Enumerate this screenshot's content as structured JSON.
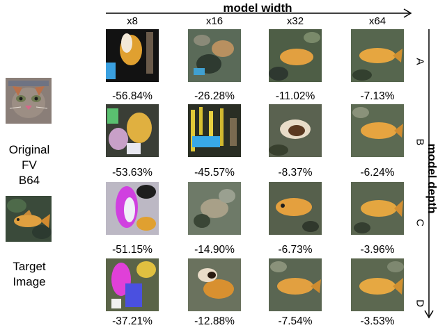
{
  "figure": {
    "x_axis_title": "model width",
    "y_axis_title": "model depth",
    "columns": [
      "x8",
      "x16",
      "x32",
      "x64"
    ],
    "rows": [
      "A",
      "B",
      "C",
      "D"
    ],
    "cells": [
      [
        "-56.84%",
        "-26.28%",
        "-11.02%",
        "-7.13%"
      ],
      [
        "-53.63%",
        "-45.57%",
        "-8.37%",
        "-6.24%"
      ],
      [
        "-51.15%",
        "-14.90%",
        "-6.73%",
        "-3.96%"
      ],
      [
        "-37.21%",
        "-12.88%",
        "-7.54%",
        "-3.53%"
      ]
    ],
    "left_panel": {
      "original_label_lines": [
        "Original",
        "FV",
        "B64"
      ],
      "target_label_lines": [
        "Target",
        "Image"
      ]
    }
  }
}
